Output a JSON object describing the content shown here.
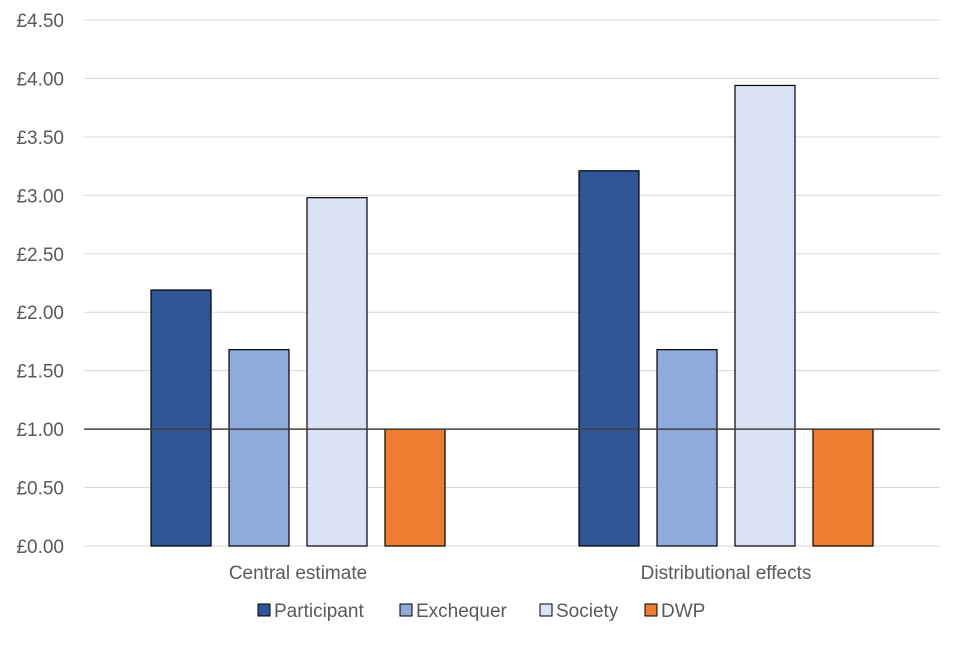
{
  "chart_data": {
    "type": "bar",
    "categories": [
      "Central estimate",
      "Distributional effects"
    ],
    "series": [
      {
        "name": "Participant",
        "values": [
          2.19,
          3.21
        ],
        "color": "#2F5597"
      },
      {
        "name": "Exchequer",
        "values": [
          1.68,
          1.68
        ],
        "color": "#8FAADC"
      },
      {
        "name": "Society",
        "values": [
          2.98,
          3.94
        ],
        "color": "#DAE3F3"
      },
      {
        "name": "DWP",
        "values": [
          1.0,
          1.0
        ],
        "color": "#ED7D31"
      }
    ],
    "ylim": [
      0,
      4.5
    ],
    "yticks": [
      0,
      0.5,
      1.0,
      1.5,
      2.0,
      2.5,
      3.0,
      3.5,
      4.0,
      4.5
    ],
    "ytick_labels": [
      "£0.00",
      "£0.50",
      "£1.00",
      "£1.50",
      "£2.00",
      "£2.50",
      "£3.00",
      "£3.50",
      "£4.00",
      "£4.50"
    ],
    "reference_line": 1.0,
    "legend_position": "bottom",
    "title": "",
    "xlabel": "",
    "ylabel": ""
  }
}
